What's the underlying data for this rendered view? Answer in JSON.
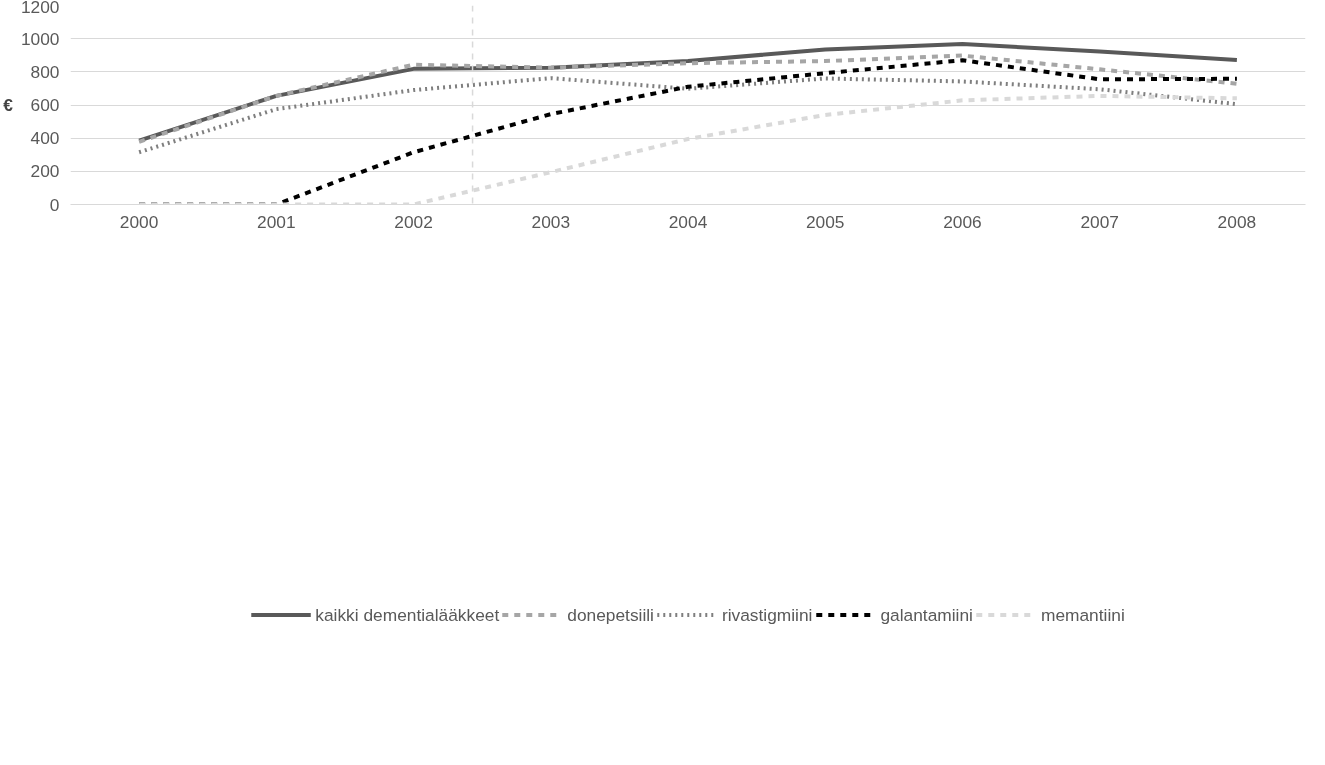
{
  "chart_data": {
    "type": "line",
    "ylabel": "€",
    "x": [
      2000,
      2001,
      2002,
      2003,
      2004,
      2005,
      2006,
      2007,
      2008
    ],
    "xlim": [
      1999.5,
      2008.5
    ],
    "xticks": [
      2000,
      2001,
      2002,
      2003,
      2004,
      2005,
      2006,
      2007,
      2008
    ],
    "ylim": [
      0,
      1200
    ],
    "yticks": [
      0,
      200,
      400,
      600,
      800,
      1000,
      1200
    ],
    "grid": "y",
    "legend": "bottom",
    "marker": "none",
    "ref_lines": [
      {
        "axis": "x",
        "value": 2002.43,
        "label": null,
        "color": "#d9d9d9",
        "line_style": "dashed"
      }
    ],
    "series": [
      {
        "name": "kaikki dementialääkkeet",
        "color": "#595959",
        "line_style": "solid",
        "values": [
          385,
          655,
          818,
          825,
          865,
          935,
          968,
          922,
          872
        ]
      },
      {
        "name": "donepetsiili",
        "color": "#a6a6a6",
        "line_style": "dashed",
        "values": [
          378,
          655,
          843,
          825,
          852,
          865,
          898,
          815,
          728
        ]
      },
      {
        "name": "rivastigmiini",
        "color": "#7f7f7f",
        "line_style": "dotted",
        "values": [
          315,
          575,
          690,
          762,
          698,
          760,
          742,
          695,
          605
        ]
      },
      {
        "name": "galantamiini",
        "color": "#000000",
        "line_style": "dashed",
        "values": [
          0,
          0,
          315,
          545,
          710,
          792,
          870,
          755,
          758
        ]
      },
      {
        "name": "memantiini",
        "color": "#d9d9d9",
        "line_style": "dashed",
        "values": [
          0,
          0,
          0,
          195,
          395,
          540,
          628,
          655,
          640
        ]
      }
    ]
  }
}
